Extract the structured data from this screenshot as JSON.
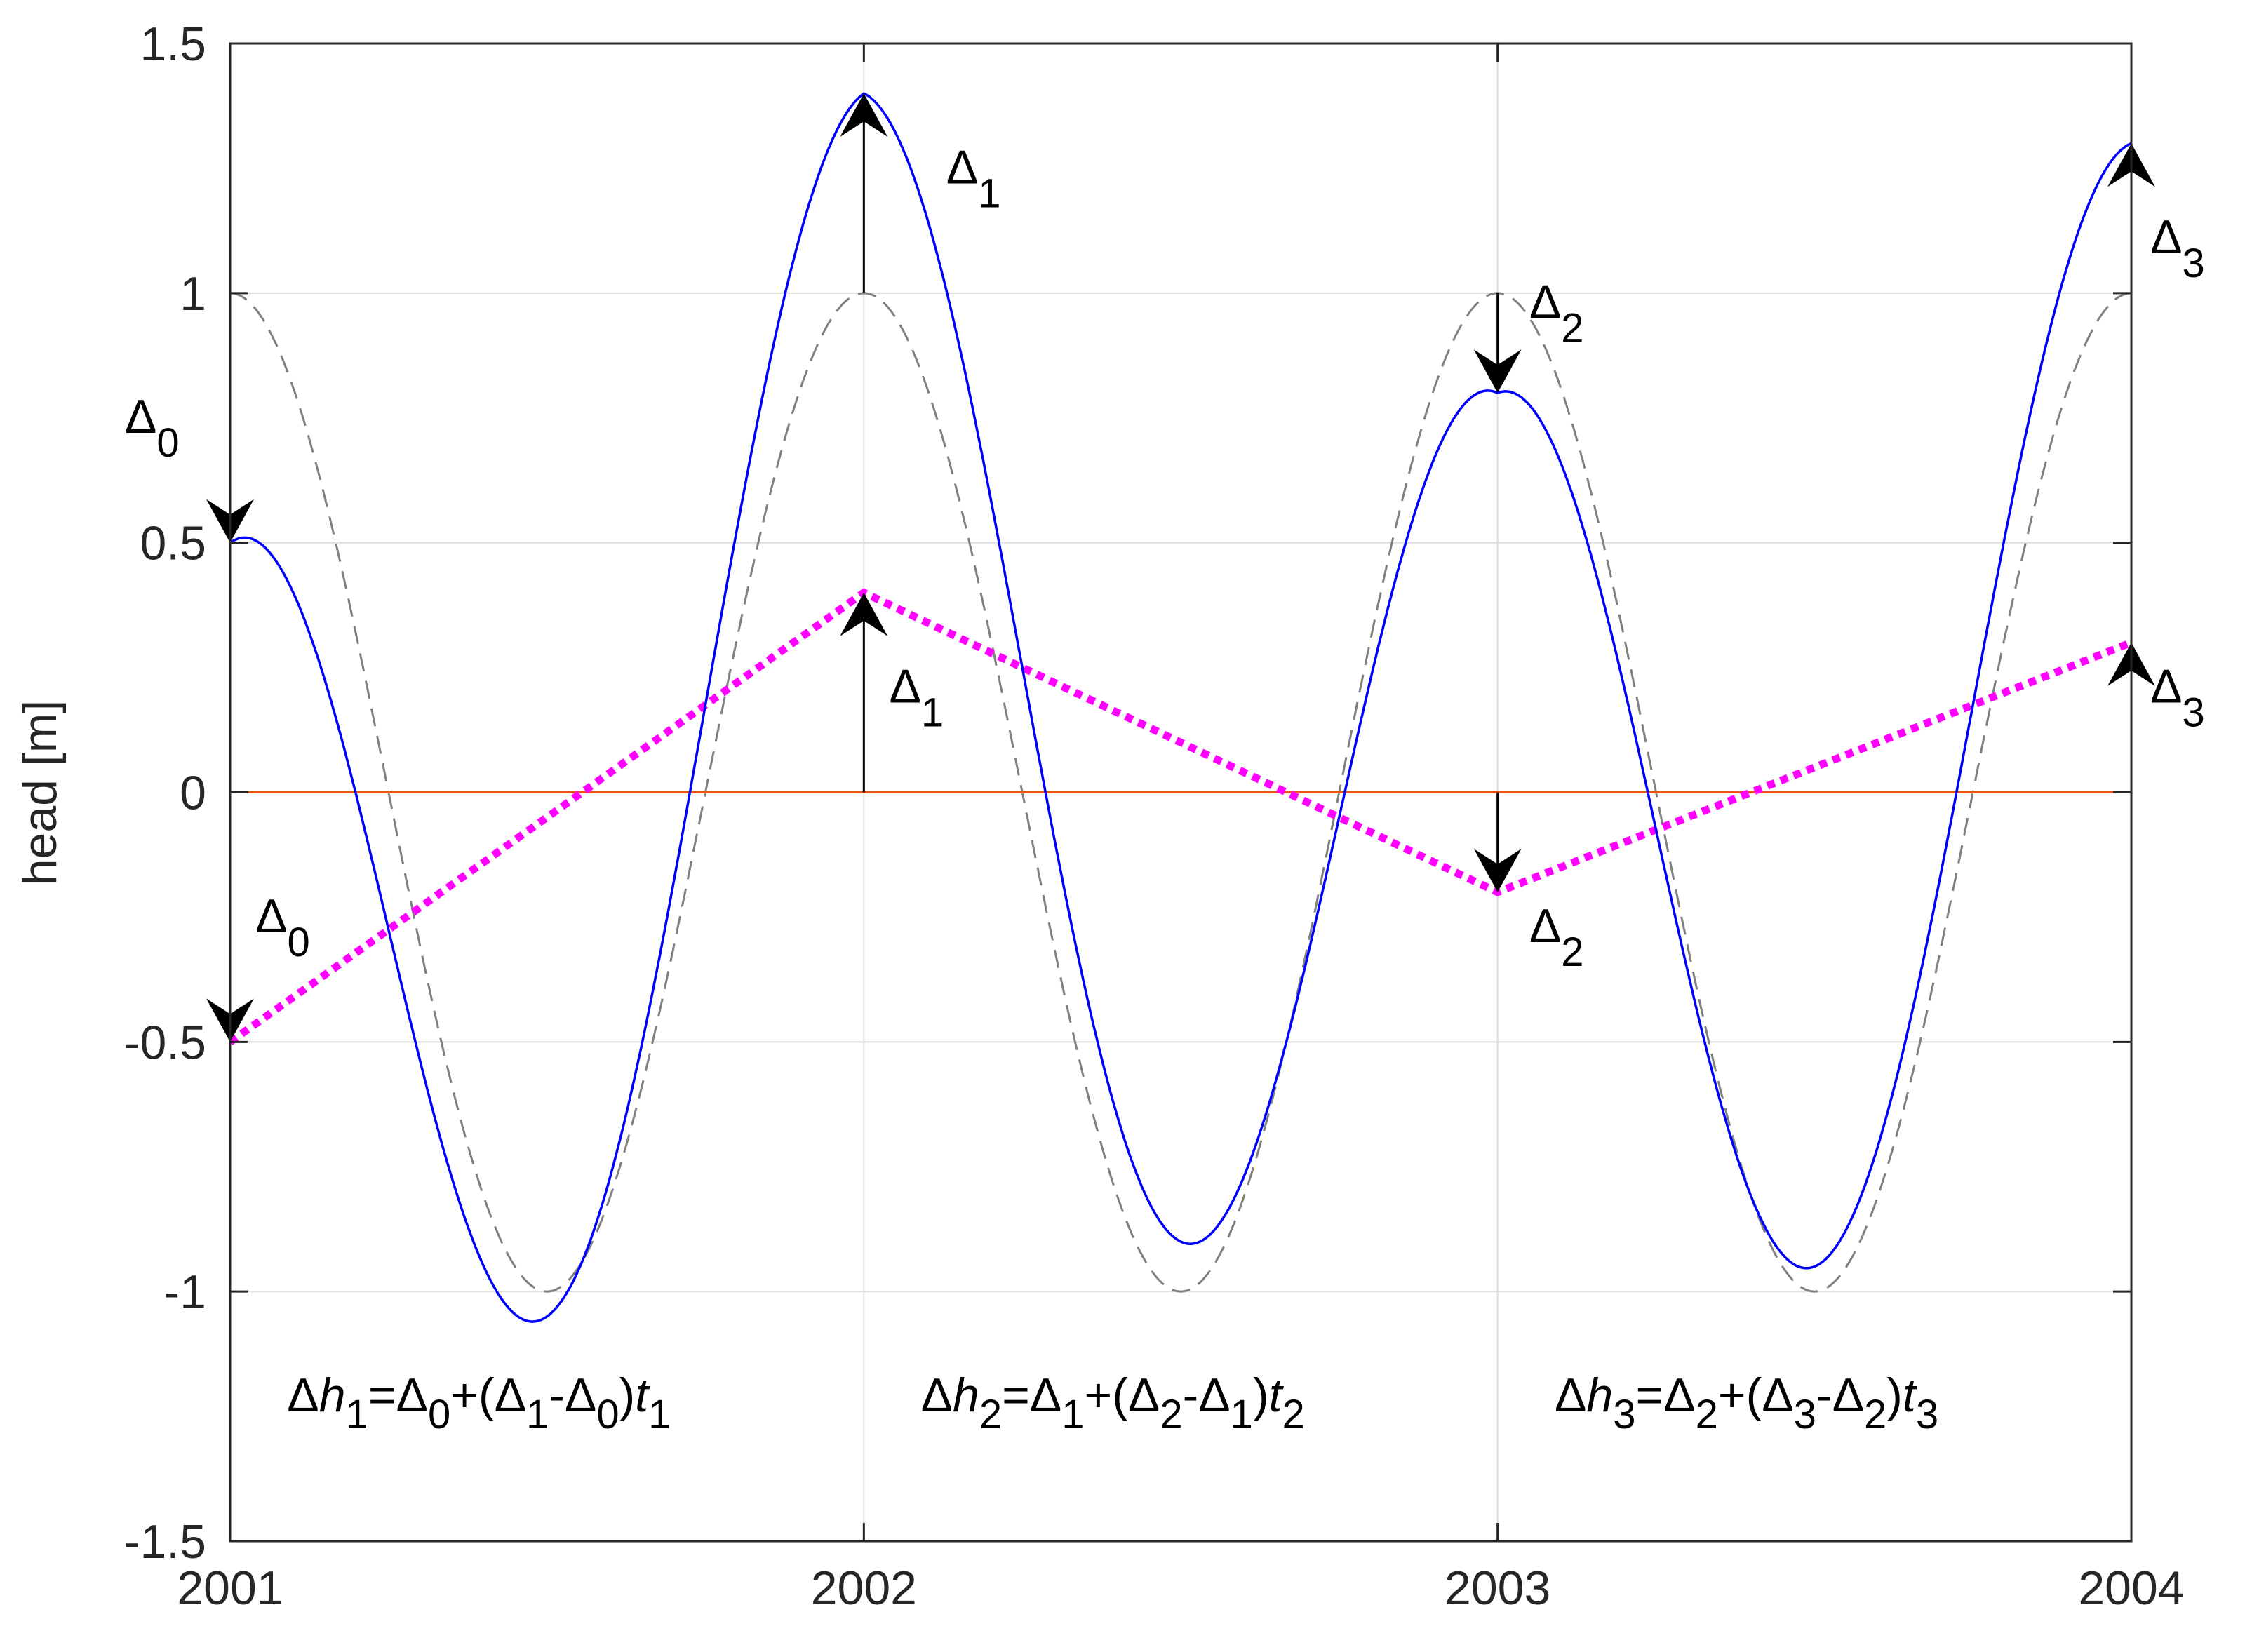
{
  "chart_data": {
    "type": "line",
    "title": "",
    "xlabel": "",
    "ylabel": "head [m]",
    "xlim": [
      2001,
      2004
    ],
    "ylim": [
      -1.5,
      1.5
    ],
    "x_ticks": [
      "2001",
      "2002",
      "2003",
      "2004"
    ],
    "y_ticks": [
      "-1.5",
      "-1",
      "-0.5",
      "0",
      "0.5",
      "1",
      "1.5"
    ],
    "grid": true,
    "legend": "none",
    "colors": {
      "solid": "#0000ff",
      "dashed": "#808080",
      "dotted": "#ff00ff",
      "zero": "#e8551a",
      "arrow": "#000000"
    },
    "series": [
      {
        "style": "dashed",
        "description_free": true,
        "function": "cos(2*pi*(t-2001))",
        "x": [
          2001.0,
          2001.25,
          2001.5,
          2001.75,
          2002.0,
          2002.25,
          2002.5,
          2002.75,
          2003.0,
          2003.25,
          2003.5,
          2003.75,
          2004.0
        ],
        "y": [
          1.0,
          0.0,
          -1.0,
          0.0,
          1.0,
          0.0,
          -1.0,
          0.0,
          1.0,
          0.0,
          -1.0,
          0.0,
          1.0
        ]
      },
      {
        "style": "dotted",
        "x": [
          2001,
          2002,
          2003,
          2004
        ],
        "y": [
          -0.5,
          0.4,
          -0.2,
          0.3
        ]
      },
      {
        "style": "solid",
        "x": [
          2001.0,
          2001.25,
          2001.5,
          2001.75,
          2002.0,
          2002.25,
          2002.5,
          2002.75,
          2003.0,
          2003.25,
          2003.5,
          2003.75,
          2004.0
        ],
        "y": [
          0.5,
          -0.28,
          -1.05,
          0.12,
          1.4,
          0.1,
          -0.9,
          -0.05,
          0.8,
          0.05,
          -0.95,
          0.1,
          1.3
        ]
      },
      {
        "style": "zero-line",
        "x": [
          2001,
          2004
        ],
        "y": [
          0,
          0
        ]
      }
    ],
    "arrows": [
      {
        "x": 2001,
        "from": 1.0,
        "to": 0.5
      },
      {
        "x": 2002,
        "from": 1.0,
        "to": 1.4
      },
      {
        "x": 2003,
        "from": 1.0,
        "to": 0.8
      },
      {
        "x": 2004,
        "from": 1.0,
        "to": 1.3
      },
      {
        "x": 2001,
        "from": 0.0,
        "to": -0.5
      },
      {
        "x": 2002,
        "from": 0.0,
        "to": 0.4
      },
      {
        "x": 2003,
        "from": 0.0,
        "to": -0.2
      },
      {
        "x": 2004,
        "from": 0.0,
        "to": 0.3
      }
    ],
    "annotations": [
      {
        "base": "Δ",
        "sub": "0",
        "x": 2001.0,
        "y": 0.72
      },
      {
        "base": "Δ",
        "sub": "1",
        "x": 2002.13,
        "y": 1.22
      },
      {
        "base": "Δ",
        "sub": "2",
        "x": 2003.05,
        "y": 0.95
      },
      {
        "base": "Δ",
        "sub": "3",
        "x": 2004.03,
        "y": 1.08
      },
      {
        "base": "Δ",
        "sub": "0",
        "x": 2001.04,
        "y": -0.28
      },
      {
        "base": "Δ",
        "sub": "1",
        "x": 2002.04,
        "y": 0.18
      },
      {
        "base": "Δ",
        "sub": "2",
        "x": 2003.05,
        "y": -0.3
      },
      {
        "base": "Δ",
        "sub": "3",
        "x": 2004.03,
        "y": 0.18
      }
    ],
    "formulas": [
      {
        "x": 2001.09,
        "y": -1.24,
        "parts": [
          {
            "t": "Δ"
          },
          {
            "t": "h",
            "it": true
          },
          {
            "t": "1",
            "sub": true
          },
          {
            "t": "=Δ"
          },
          {
            "t": "0",
            "sub": true
          },
          {
            "t": "+(Δ"
          },
          {
            "t": "1",
            "sub": true
          },
          {
            "t": "-Δ"
          },
          {
            "t": "0",
            "sub": true
          },
          {
            "t": ")"
          },
          {
            "t": "t",
            "it": true
          },
          {
            "t": "1",
            "sub": true
          }
        ]
      },
      {
        "x": 2002.09,
        "y": -1.24,
        "parts": [
          {
            "t": "Δ"
          },
          {
            "t": "h",
            "it": true
          },
          {
            "t": "2",
            "sub": true
          },
          {
            "t": "=Δ"
          },
          {
            "t": "1",
            "sub": true
          },
          {
            "t": "+(Δ"
          },
          {
            "t": "2",
            "sub": true
          },
          {
            "t": "-Δ"
          },
          {
            "t": "1",
            "sub": true
          },
          {
            "t": ")"
          },
          {
            "t": "t",
            "it": true
          },
          {
            "t": "2",
            "sub": true
          }
        ]
      },
      {
        "x": 2003.09,
        "y": -1.24,
        "parts": [
          {
            "t": "Δ"
          },
          {
            "t": "h",
            "it": true
          },
          {
            "t": "3",
            "sub": true
          },
          {
            "t": "=Δ"
          },
          {
            "t": "2",
            "sub": true
          },
          {
            "t": "+(Δ"
          },
          {
            "t": "3",
            "sub": true
          },
          {
            "t": "-Δ"
          },
          {
            "t": "2",
            "sub": true
          },
          {
            "t": ")"
          },
          {
            "t": "t",
            "it": true
          },
          {
            "t": "3",
            "sub": true
          }
        ]
      }
    ]
  }
}
